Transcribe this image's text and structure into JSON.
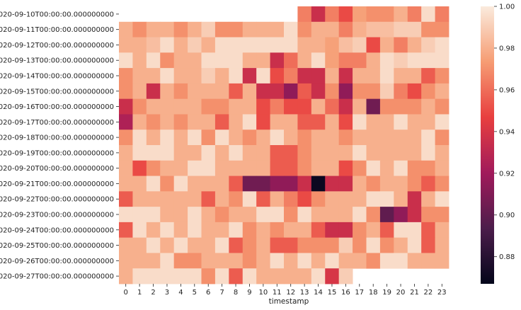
{
  "chart_data": {
    "type": "heatmap",
    "xlabel": "timestamp",
    "ylabel": "",
    "title": "",
    "x": [
      "0",
      "1",
      "2",
      "3",
      "4",
      "5",
      "6",
      "7",
      "8",
      "9",
      "10",
      "11",
      "12",
      "13",
      "14",
      "15",
      "16",
      "17",
      "18",
      "19",
      "20",
      "21",
      "22",
      "23"
    ],
    "y": [
      "2020-09-10T00:00:00.000000000",
      "2020-09-11T00:00:00.000000000",
      "2020-09-12T00:00:00.000000000",
      "2020-09-13T00:00:00.000000000",
      "2020-09-14T00:00:00.000000000",
      "2020-09-15T00:00:00.000000000",
      "2020-09-16T00:00:00.000000000",
      "2020-09-17T00:00:00.000000000",
      "2020-09-18T00:00:00.000000000",
      "2020-09-19T00:00:00.000000000",
      "2020-09-20T00:00:00.000000000",
      "2020-09-21T00:00:00.000000000",
      "2020-09-22T00:00:00.000000000",
      "2020-09-23T00:00:00.000000000",
      "2020-09-24T00:00:00.000000000",
      "2020-09-25T00:00:00.000000000",
      "2020-09-26T00:00:00.000000000",
      "2020-09-27T00:00:00.000000000"
    ],
    "values": [
      [
        null,
        null,
        null,
        null,
        null,
        null,
        null,
        null,
        null,
        null,
        null,
        null,
        null,
        0.965,
        0.935,
        0.965,
        0.95,
        0.975,
        0.97,
        0.97,
        0.98,
        0.965,
        0.995,
        0.965
      ],
      [
        0.98,
        0.97,
        0.98,
        0.98,
        0.97,
        0.98,
        0.99,
        0.97,
        0.97,
        0.98,
        0.98,
        0.98,
        0.995,
        0.97,
        0.98,
        0.98,
        0.965,
        0.98,
        0.985,
        0.985,
        0.99,
        0.99,
        0.97,
        0.97
      ],
      [
        0.98,
        0.98,
        0.985,
        0.995,
        0.98,
        0.99,
        0.98,
        0.995,
        0.995,
        0.995,
        0.995,
        0.995,
        0.995,
        0.98,
        0.98,
        0.975,
        0.985,
        0.99,
        0.95,
        0.98,
        0.965,
        0.98,
        0.99,
        0.995
      ],
      [
        0.995,
        0.98,
        0.995,
        0.97,
        0.98,
        0.98,
        0.995,
        0.995,
        0.995,
        0.98,
        0.98,
        0.935,
        0.96,
        0.98,
        0.995,
        0.975,
        0.965,
        0.965,
        0.98,
        0.995,
        0.99,
        0.995,
        0.995,
        0.995
      ],
      [
        0.97,
        0.98,
        0.98,
        0.995,
        0.98,
        0.98,
        0.99,
        0.98,
        0.995,
        0.935,
        0.995,
        0.95,
        0.965,
        0.935,
        0.935,
        0.98,
        0.935,
        0.98,
        0.98,
        0.995,
        0.98,
        0.98,
        0.955,
        0.97
      ],
      [
        0.97,
        0.98,
        0.935,
        0.98,
        0.97,
        0.98,
        0.98,
        0.98,
        0.955,
        0.98,
        0.935,
        0.935,
        0.915,
        0.955,
        0.935,
        0.97,
        0.915,
        0.97,
        0.97,
        0.99,
        0.965,
        0.95,
        0.97,
        0.98
      ],
      [
        0.935,
        0.97,
        0.98,
        0.98,
        0.98,
        0.98,
        0.97,
        0.97,
        0.98,
        0.98,
        0.95,
        0.965,
        0.95,
        0.95,
        0.98,
        0.96,
        0.935,
        0.98,
        0.905,
        0.97,
        0.97,
        0.97,
        0.98,
        0.97
      ],
      [
        0.925,
        0.98,
        0.97,
        0.98,
        0.97,
        0.98,
        0.98,
        0.955,
        0.98,
        0.995,
        0.95,
        0.98,
        0.98,
        0.955,
        0.955,
        0.98,
        0.95,
        0.995,
        0.98,
        0.98,
        0.995,
        0.98,
        0.98,
        0.995
      ],
      [
        0.97,
        0.995,
        0.98,
        0.995,
        0.98,
        0.995,
        0.97,
        0.995,
        0.98,
        0.97,
        0.98,
        0.995,
        0.98,
        0.97,
        0.98,
        0.98,
        0.97,
        0.98,
        0.98,
        0.98,
        0.98,
        0.98,
        0.995,
        0.97
      ],
      [
        0.98,
        0.995,
        0.995,
        0.995,
        0.98,
        0.98,
        0.995,
        0.98,
        0.995,
        0.98,
        0.98,
        0.955,
        0.955,
        0.97,
        0.98,
        0.98,
        0.98,
        0.995,
        0.98,
        0.98,
        0.98,
        0.98,
        0.995,
        0.98
      ],
      [
        0.98,
        0.95,
        0.97,
        0.98,
        0.98,
        0.995,
        0.995,
        0.98,
        0.98,
        0.98,
        0.98,
        0.955,
        0.955,
        0.97,
        0.98,
        0.98,
        0.95,
        0.97,
        0.995,
        0.98,
        0.995,
        0.97,
        0.97,
        0.98
      ],
      [
        0.98,
        0.98,
        0.995,
        0.97,
        0.995,
        0.98,
        0.98,
        0.98,
        0.955,
        0.905,
        0.905,
        0.915,
        0.915,
        0.935,
        0.87,
        0.935,
        0.935,
        0.98,
        0.97,
        0.98,
        0.98,
        0.97,
        0.955,
        0.97
      ],
      [
        0.955,
        0.98,
        0.98,
        0.98,
        0.98,
        0.98,
        0.955,
        0.98,
        0.97,
        0.995,
        0.955,
        0.98,
        0.965,
        0.95,
        0.97,
        0.98,
        0.98,
        0.98,
        0.995,
        0.995,
        0.98,
        0.935,
        0.98,
        0.995
      ],
      [
        0.995,
        0.995,
        0.995,
        0.98,
        0.98,
        0.995,
        0.98,
        0.97,
        0.98,
        0.98,
        0.995,
        0.995,
        0.97,
        0.995,
        0.98,
        0.98,
        0.98,
        0.995,
        0.97,
        0.9,
        0.915,
        0.935,
        0.97,
        0.97
      ],
      [
        0.955,
        0.995,
        0.98,
        0.995,
        0.98,
        0.995,
        0.98,
        0.98,
        0.995,
        0.97,
        0.98,
        0.97,
        0.98,
        0.98,
        0.955,
        0.935,
        0.935,
        0.97,
        0.98,
        0.955,
        0.995,
        0.995,
        0.955,
        0.98
      ],
      [
        0.98,
        0.98,
        0.995,
        0.98,
        0.995,
        0.98,
        0.98,
        0.995,
        0.955,
        0.97,
        0.98,
        0.955,
        0.955,
        0.97,
        0.97,
        0.97,
        0.99,
        0.97,
        0.995,
        0.97,
        0.98,
        0.995,
        0.955,
        0.98
      ],
      [
        0.98,
        0.98,
        0.98,
        0.995,
        0.97,
        0.97,
        0.98,
        0.98,
        0.98,
        0.97,
        0.98,
        0.995,
        0.98,
        0.995,
        0.98,
        0.995,
        0.98,
        0.98,
        0.97,
        0.995,
        0.995,
        0.98,
        0.98,
        0.98
      ],
      [
        0.98,
        0.995,
        0.995,
        0.995,
        0.995,
        0.995,
        0.97,
        0.995,
        0.955,
        0.995,
        0.98,
        0.98,
        0.98,
        0.98,
        0.995,
        0.94,
        0.99,
        null,
        null,
        null,
        null,
        null,
        null,
        null
      ]
    ],
    "colorbar": {
      "min": 0.867,
      "max": 1.0,
      "ticks": [
        "0.88",
        "0.90",
        "0.92",
        "0.94",
        "0.96",
        "0.98",
        "1.00"
      ],
      "tick_values": [
        0.88,
        0.9,
        0.92,
        0.94,
        0.96,
        0.98,
        1.0
      ]
    },
    "colormap": "rocket",
    "grid": false,
    "legend": "colorbar-right"
  }
}
